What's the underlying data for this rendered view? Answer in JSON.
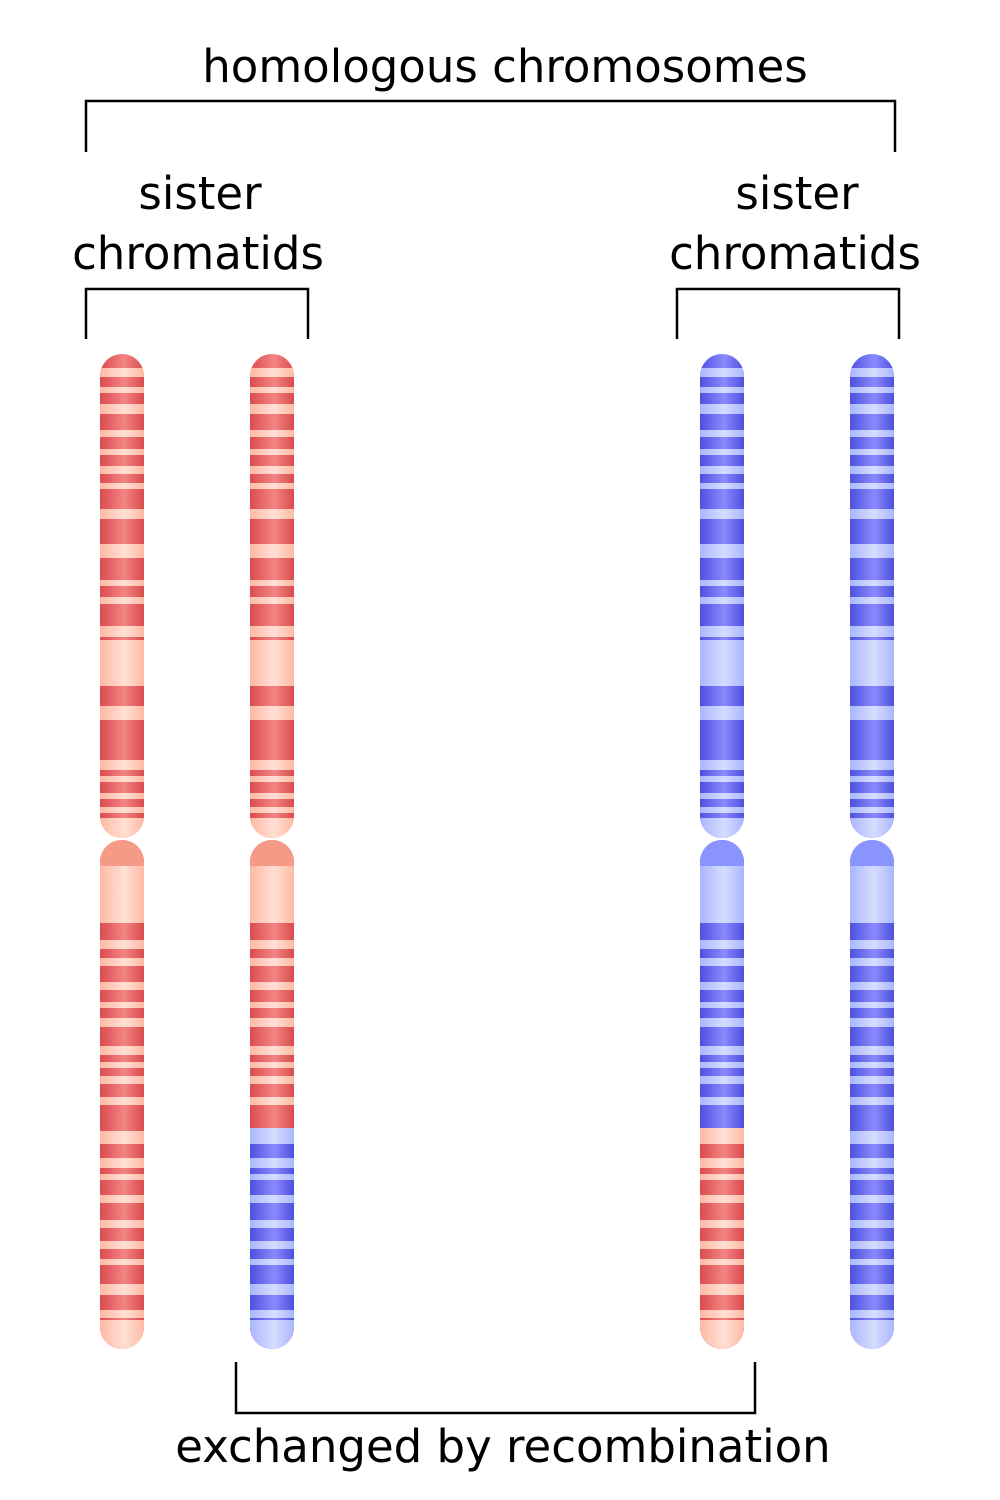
{
  "labels": {
    "top": "homologous chromosomes",
    "left_line1": "sister",
    "left_line2": "chromatids",
    "right_line1": "sister",
    "right_line2": "chromatids",
    "bottom": "exchanged by recombination"
  },
  "colors": {
    "red_dark": "#e05757",
    "red_mid": "#f07d7d",
    "red_light": "#ffc8b4",
    "red_cap": "#f59a86",
    "blue_dark": "#5a5ae6",
    "blue_mid": "#8484ff",
    "blue_light": "#b9c4ff",
    "blue_cap": "#8a94ff"
  },
  "chromatids": [
    {
      "name": "chromatid-left-1",
      "upper": "red",
      "lower": "red",
      "crossover": false
    },
    {
      "name": "chromatid-left-2",
      "upper": "red",
      "lower": "red",
      "crossover": true,
      "crossover_color": "blue"
    },
    {
      "name": "chromatid-right-1",
      "upper": "blue",
      "lower": "blue",
      "crossover": true,
      "crossover_color": "red"
    },
    {
      "name": "chromatid-right-2",
      "upper": "blue",
      "lower": "blue",
      "crossover": false
    }
  ]
}
